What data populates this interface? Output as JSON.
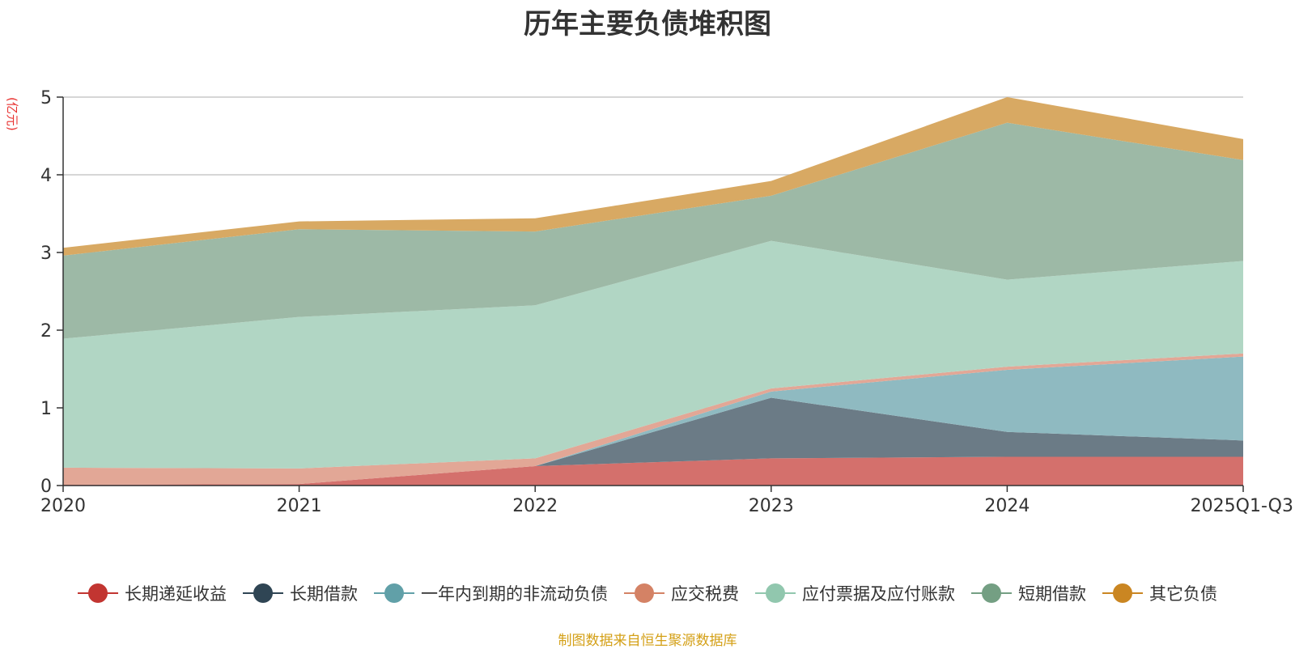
{
  "page": {
    "title": "历年主要负债堆积图",
    "source": "制图数据来自恒生聚源数据库"
  },
  "chart_data": {
    "type": "area",
    "stacked": true,
    "title": "历年主要负债堆积图",
    "ylabel": "(亿元)",
    "xlabel": "",
    "ylim": [
      0,
      5
    ],
    "yticks": [
      0,
      1,
      2,
      3,
      4,
      5
    ],
    "categories": [
      "2020",
      "2021",
      "2022",
      "2023",
      "2024",
      "2025Q1-Q3"
    ],
    "grid": true,
    "legend_position": "bottom",
    "series": [
      {
        "name": "长期递延收益",
        "color": "#c23531",
        "fill": "#d4706c",
        "values": [
          0.01,
          0.02,
          0.25,
          0.35,
          0.37,
          0.37
        ]
      },
      {
        "name": "长期借款",
        "color": "#2f4554",
        "fill": "#6b7b86",
        "values": [
          0.0,
          0.0,
          0.0,
          0.78,
          0.32,
          0.21
        ]
      },
      {
        "name": "一年内到期的非流动负债",
        "color": "#61a0a8",
        "fill": "#8fbac1",
        "values": [
          0.0,
          0.0,
          0.0,
          0.08,
          0.8,
          1.08
        ]
      },
      {
        "name": "应交税费",
        "color": "#d48265",
        "fill": "#e2a796",
        "values": [
          0.22,
          0.2,
          0.1,
          0.04,
          0.04,
          0.04
        ]
      },
      {
        "name": "应付票据及应付账款",
        "color": "#91c7ae",
        "fill": "#b1d6c4",
        "values": [
          1.66,
          1.95,
          1.97,
          1.9,
          1.12,
          1.19
        ]
      },
      {
        "name": "短期借款",
        "color": "#749f83",
        "fill": "#9db9a6",
        "values": [
          1.07,
          1.13,
          0.95,
          0.58,
          2.02,
          1.3
        ]
      },
      {
        "name": "其它负债",
        "color": "#ca8622",
        "fill": "#d8a963",
        "values": [
          0.1,
          0.1,
          0.17,
          0.19,
          0.33,
          0.27
        ]
      }
    ]
  }
}
